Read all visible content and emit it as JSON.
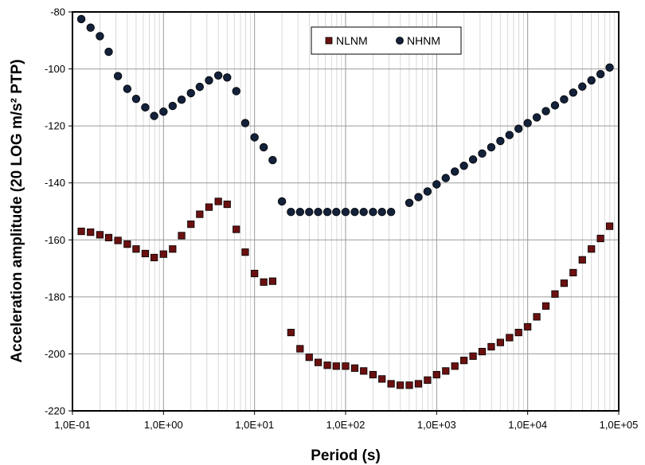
{
  "chart_data": {
    "type": "scatter",
    "xlabel": "Period (s)",
    "ylabel": "Acceleration  amplitude (20 LOG m/s² PTP)",
    "x_scale": "log",
    "xlim": [
      0.1,
      100000
    ],
    "ylim": [
      -220,
      -80
    ],
    "x_tick_values": [
      0.1,
      1,
      10,
      100,
      1000,
      10000,
      100000
    ],
    "x_tick_labels": [
      "1,0E-01",
      "1,0E+00",
      "1,0E+01",
      "1,0E+02",
      "1,0E+03",
      "1,0E+04",
      "1,0E+05"
    ],
    "y_tick_values": [
      -80,
      -100,
      -120,
      -140,
      -160,
      -180,
      -200,
      -220
    ],
    "y_tick_labels": [
      "-80",
      "-100",
      "-120",
      "-140",
      "-160",
      "-180",
      "-200",
      "-220"
    ],
    "grid": true,
    "legend_position": "top-right",
    "series": [
      {
        "name": "NLNM",
        "marker": "square",
        "color": "#6b1010",
        "points": [
          [
            0.125,
            -157
          ],
          [
            0.158,
            -157.3
          ],
          [
            0.2,
            -158.2
          ],
          [
            0.25,
            -159.2
          ],
          [
            0.316,
            -160.2
          ],
          [
            0.4,
            -161.5
          ],
          [
            0.5,
            -163.2
          ],
          [
            0.63,
            -164.8
          ],
          [
            0.79,
            -166.2
          ],
          [
            1.0,
            -165
          ],
          [
            1.26,
            -163.2
          ],
          [
            1.58,
            -158.5
          ],
          [
            2.0,
            -154.5
          ],
          [
            2.5,
            -151
          ],
          [
            3.16,
            -148.5
          ],
          [
            4.0,
            -146.5
          ],
          [
            5.0,
            -147.5
          ],
          [
            6.3,
            -156.3
          ],
          [
            7.9,
            -164.3
          ],
          [
            10.0,
            -171.8
          ],
          [
            12.6,
            -174.8
          ],
          [
            15.8,
            -174.5
          ],
          [
            25.1,
            -192.5
          ],
          [
            31.6,
            -198.2
          ],
          [
            39.8,
            -201.2
          ],
          [
            50,
            -203
          ],
          [
            63,
            -204
          ],
          [
            79,
            -204.3
          ],
          [
            100,
            -204.3
          ],
          [
            126,
            -205
          ],
          [
            158,
            -206
          ],
          [
            200,
            -207.3
          ],
          [
            251,
            -208.8
          ],
          [
            316,
            -210.5
          ],
          [
            398,
            -211
          ],
          [
            501,
            -211
          ],
          [
            631,
            -210.5
          ],
          [
            794,
            -209.2
          ],
          [
            1000,
            -207.3
          ],
          [
            1259,
            -206
          ],
          [
            1585,
            -204.3
          ],
          [
            1995,
            -202.3
          ],
          [
            2512,
            -200.8
          ],
          [
            3162,
            -199.2
          ],
          [
            3981,
            -197.5
          ],
          [
            5012,
            -196
          ],
          [
            6310,
            -194.3
          ],
          [
            7943,
            -192.5
          ],
          [
            10000,
            -190.5
          ],
          [
            12589,
            -187
          ],
          [
            15849,
            -183.2
          ],
          [
            19953,
            -179
          ],
          [
            25119,
            -175.2
          ],
          [
            31623,
            -171.5
          ],
          [
            39811,
            -167
          ],
          [
            50119,
            -163.2
          ],
          [
            63096,
            -159.5
          ],
          [
            79433,
            -155.2
          ]
        ]
      },
      {
        "name": "NHNM",
        "marker": "circle",
        "color": "#13213a",
        "points": [
          [
            0.125,
            -82.5
          ],
          [
            0.158,
            -85.5
          ],
          [
            0.2,
            -88.5
          ],
          [
            0.25,
            -94
          ],
          [
            0.316,
            -102.5
          ],
          [
            0.4,
            -107
          ],
          [
            0.5,
            -110.5
          ],
          [
            0.63,
            -113.5
          ],
          [
            0.79,
            -116.5
          ],
          [
            1.0,
            -115
          ],
          [
            1.26,
            -113
          ],
          [
            1.58,
            -110.8
          ],
          [
            2.0,
            -108.5
          ],
          [
            2.5,
            -106.3
          ],
          [
            3.16,
            -104
          ],
          [
            4.0,
            -102.3
          ],
          [
            5.0,
            -103
          ],
          [
            6.3,
            -107.8
          ],
          [
            7.9,
            -119
          ],
          [
            10.0,
            -124
          ],
          [
            12.6,
            -127.5
          ],
          [
            15.8,
            -132
          ],
          [
            20,
            -146.5
          ],
          [
            25.1,
            -150.2
          ],
          [
            31.6,
            -150.2
          ],
          [
            39.8,
            -150.2
          ],
          [
            50,
            -150.2
          ],
          [
            63,
            -150.2
          ],
          [
            79,
            -150.2
          ],
          [
            100,
            -150.2
          ],
          [
            126,
            -150.2
          ],
          [
            158,
            -150.2
          ],
          [
            200,
            -150.2
          ],
          [
            251,
            -150.2
          ],
          [
            316,
            -150.2
          ],
          [
            501,
            -147
          ],
          [
            631,
            -145
          ],
          [
            794,
            -143
          ],
          [
            1000,
            -140.5
          ],
          [
            1259,
            -138.3
          ],
          [
            1585,
            -136
          ],
          [
            1995,
            -134
          ],
          [
            2512,
            -131.8
          ],
          [
            3162,
            -129.7
          ],
          [
            3981,
            -127.5
          ],
          [
            5012,
            -125.3
          ],
          [
            6310,
            -123.2
          ],
          [
            7943,
            -121
          ],
          [
            10000,
            -119
          ],
          [
            12589,
            -117
          ],
          [
            15849,
            -114.8
          ],
          [
            19953,
            -112.8
          ],
          [
            25119,
            -110.7
          ],
          [
            31623,
            -108.3
          ],
          [
            39811,
            -106.2
          ],
          [
            50119,
            -104
          ],
          [
            63096,
            -101.8
          ],
          [
            79433,
            -99.5
          ]
        ]
      }
    ]
  }
}
